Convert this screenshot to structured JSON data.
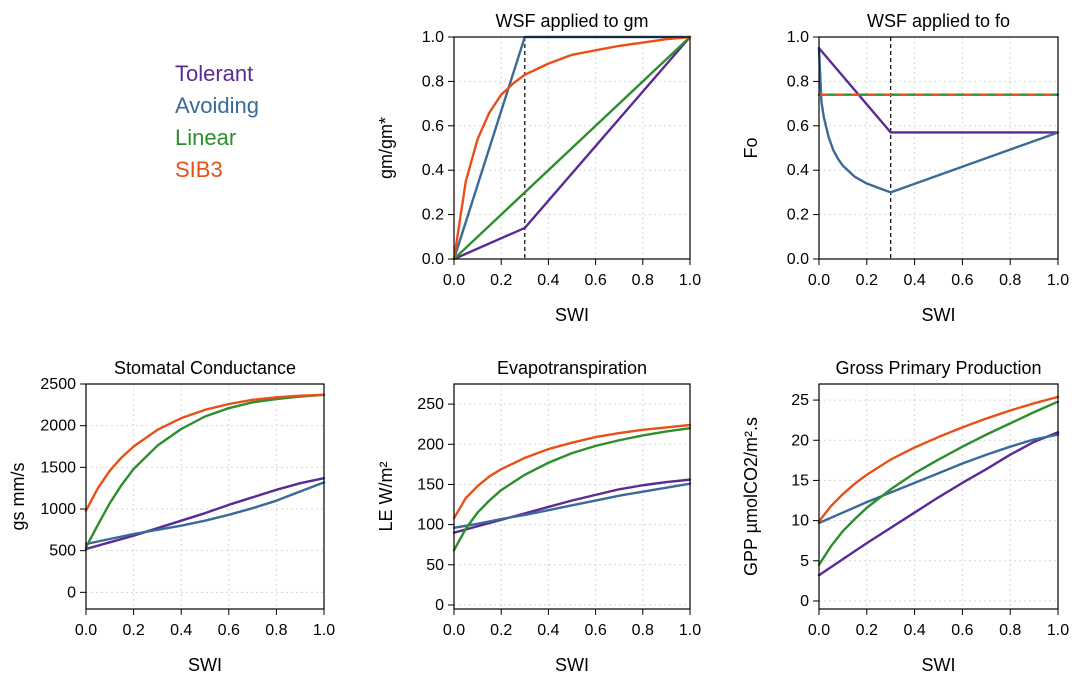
{
  "colors": {
    "tolerant": "#5b2a96",
    "avoiding": "#3a6a98",
    "linear": "#2d8e2d",
    "sib3": "#e8501a",
    "grid": "#d6d6d6"
  },
  "legend": {
    "entries": [
      {
        "label": "Tolerant",
        "color": "#5b2a96"
      },
      {
        "label": "Avoiding",
        "color": "#3a6a98"
      },
      {
        "label": "Linear",
        "color": "#2d8e2d"
      },
      {
        "label": "SIB3",
        "color": "#e8501a"
      }
    ]
  },
  "chart_data": [
    {
      "type": "line",
      "title": "WSF applied to gm",
      "xlabel": "SWI",
      "ylabel": "gm/gm*",
      "xlim": [
        0,
        1
      ],
      "ylim": [
        0,
        1
      ],
      "xticks": [
        "0.0",
        "0.2",
        "0.4",
        "0.6",
        "0.8",
        "1.0"
      ],
      "yticks": [
        "0.0",
        "0.2",
        "0.4",
        "0.6",
        "0.8",
        "1.0"
      ],
      "grid": true,
      "vline_x": 0.3,
      "series": [
        {
          "name": "Tolerant",
          "x": [
            0,
            0.3,
            1.0
          ],
          "y": [
            0,
            0.14,
            1.0
          ]
        },
        {
          "name": "Avoiding",
          "x": [
            0,
            0.3,
            1.0
          ],
          "y": [
            0,
            1.0,
            1.0
          ]
        },
        {
          "name": "Linear",
          "x": [
            0,
            1.0
          ],
          "y": [
            0,
            1.0
          ]
        },
        {
          "name": "SIB3",
          "x": [
            0,
            0.05,
            0.1,
            0.15,
            0.2,
            0.25,
            0.3,
            0.4,
            0.5,
            0.6,
            0.7,
            0.8,
            0.9,
            1.0
          ],
          "y": [
            0,
            0.35,
            0.54,
            0.66,
            0.74,
            0.79,
            0.83,
            0.88,
            0.92,
            0.94,
            0.96,
            0.975,
            0.99,
            1.0
          ]
        }
      ]
    },
    {
      "type": "line",
      "title": "WSF applied to fo",
      "xlabel": "SWI",
      "ylabel": "Fo",
      "xlim": [
        0,
        1
      ],
      "ylim": [
        0,
        1
      ],
      "xticks": [
        "0.0",
        "0.2",
        "0.4",
        "0.6",
        "0.8",
        "1.0"
      ],
      "yticks": [
        "0.0",
        "0.2",
        "0.4",
        "0.6",
        "0.8",
        "1.0"
      ],
      "grid": true,
      "vline_x": 0.3,
      "series": [
        {
          "name": "Tolerant",
          "x": [
            0,
            0.3,
            1.0
          ],
          "y": [
            0.95,
            0.57,
            0.57
          ]
        },
        {
          "name": "Avoiding",
          "x": [
            0,
            0.01,
            0.02,
            0.04,
            0.06,
            0.08,
            0.1,
            0.15,
            0.2,
            0.25,
            0.3,
            1.0
          ],
          "y": [
            0.95,
            0.71,
            0.64,
            0.55,
            0.49,
            0.45,
            0.42,
            0.37,
            0.34,
            0.32,
            0.3,
            0.57
          ]
        },
        {
          "name": "Linear",
          "x": [
            0,
            1.0
          ],
          "y": [
            0.74,
            0.74
          ]
        },
        {
          "name": "SIB3",
          "x": [
            0,
            1.0
          ],
          "y": [
            0.74,
            0.74
          ],
          "dashed": true
        }
      ]
    },
    {
      "type": "line",
      "title": "Stomatal Conductance",
      "xlabel": "SWI",
      "ylabel": "gs mm/s",
      "xlim": [
        0,
        1
      ],
      "ylim": [
        -200,
        2500
      ],
      "yticks_values": [
        0,
        500,
        1000,
        1500,
        2000,
        2500
      ],
      "xticks": [
        "0.0",
        "0.2",
        "0.4",
        "0.6",
        "0.8",
        "1.0"
      ],
      "yticks": [
        "0",
        "500",
        "1000",
        "1500",
        "2000",
        "2500"
      ],
      "grid": true,
      "series": [
        {
          "name": "Tolerant",
          "x": [
            0,
            0.1,
            0.2,
            0.3,
            0.4,
            0.5,
            0.6,
            0.7,
            0.8,
            0.9,
            1.0
          ],
          "y": [
            520,
            600,
            680,
            770,
            860,
            950,
            1050,
            1140,
            1230,
            1310,
            1370
          ]
        },
        {
          "name": "Avoiding",
          "x": [
            0,
            0.1,
            0.2,
            0.3,
            0.4,
            0.5,
            0.6,
            0.7,
            0.8,
            0.9,
            1.0
          ],
          "y": [
            580,
            640,
            700,
            750,
            800,
            860,
            930,
            1010,
            1100,
            1210,
            1320
          ]
        },
        {
          "name": "Linear",
          "x": [
            0,
            0.05,
            0.1,
            0.15,
            0.2,
            0.3,
            0.4,
            0.5,
            0.6,
            0.7,
            0.8,
            0.9,
            1.0
          ],
          "y": [
            540,
            810,
            1070,
            1290,
            1480,
            1760,
            1960,
            2110,
            2210,
            2280,
            2320,
            2350,
            2370
          ]
        },
        {
          "name": "SIB3",
          "x": [
            0,
            0.05,
            0.1,
            0.15,
            0.2,
            0.3,
            0.4,
            0.5,
            0.6,
            0.7,
            0.8,
            0.9,
            1.0
          ],
          "y": [
            980,
            1250,
            1460,
            1620,
            1750,
            1950,
            2090,
            2190,
            2260,
            2310,
            2340,
            2360,
            2370
          ]
        }
      ]
    },
    {
      "type": "line",
      "title": "Evapotranspiration",
      "xlabel": "SWI",
      "ylabel": "LE W/m²",
      "xlim": [
        0,
        1
      ],
      "ylim": [
        -5,
        275
      ],
      "yticks_values": [
        0,
        50,
        100,
        150,
        200,
        250
      ],
      "xticks": [
        "0.0",
        "0.2",
        "0.4",
        "0.6",
        "0.8",
        "1.0"
      ],
      "yticks": [
        "0",
        "50",
        "100",
        "150",
        "200",
        "250"
      ],
      "grid": true,
      "series": [
        {
          "name": "Tolerant",
          "x": [
            0,
            0.1,
            0.2,
            0.3,
            0.4,
            0.5,
            0.6,
            0.7,
            0.8,
            0.9,
            1.0
          ],
          "y": [
            90,
            98,
            106,
            114,
            122,
            130,
            137,
            144,
            149,
            153,
            156
          ]
        },
        {
          "name": "Avoiding",
          "x": [
            0,
            0.1,
            0.2,
            0.3,
            0.4,
            0.5,
            0.6,
            0.7,
            0.8,
            0.9,
            1.0
          ],
          "y": [
            96,
            101,
            107,
            112,
            118,
            124,
            130,
            136,
            141,
            146,
            151
          ]
        },
        {
          "name": "Linear",
          "x": [
            0,
            0.05,
            0.1,
            0.15,
            0.2,
            0.3,
            0.4,
            0.5,
            0.6,
            0.7,
            0.8,
            0.9,
            1.0
          ],
          "y": [
            68,
            95,
            115,
            130,
            143,
            162,
            177,
            189,
            198,
            205,
            211,
            216,
            220
          ]
        },
        {
          "name": "SIB3",
          "x": [
            0,
            0.05,
            0.1,
            0.15,
            0.2,
            0.3,
            0.4,
            0.5,
            0.6,
            0.7,
            0.8,
            0.9,
            1.0
          ],
          "y": [
            108,
            133,
            148,
            160,
            169,
            183,
            194,
            202,
            209,
            214,
            218,
            221,
            224
          ]
        }
      ]
    },
    {
      "type": "line",
      "title": "Gross Primary Production",
      "xlabel": "SWI",
      "ylabel": "GPP µmolCO2/m².s",
      "xlim": [
        0,
        1
      ],
      "ylim": [
        -1,
        27
      ],
      "yticks_values": [
        0,
        5,
        10,
        15,
        20,
        25
      ],
      "xticks": [
        "0.0",
        "0.2",
        "0.4",
        "0.6",
        "0.8",
        "1.0"
      ],
      "yticks": [
        "0",
        "5",
        "10",
        "15",
        "20",
        "25"
      ],
      "grid": true,
      "series": [
        {
          "name": "Tolerant",
          "x": [
            0,
            0.1,
            0.2,
            0.3,
            0.4,
            0.5,
            0.6,
            0.7,
            0.8,
            0.9,
            1.0
          ],
          "y": [
            3.2,
            5.2,
            7.2,
            9.1,
            11.0,
            12.9,
            14.7,
            16.4,
            18.2,
            19.8,
            21.0
          ]
        },
        {
          "name": "Avoiding",
          "x": [
            0,
            0.1,
            0.2,
            0.3,
            0.4,
            0.5,
            0.6,
            0.7,
            0.8,
            0.9,
            1.0
          ],
          "y": [
            9.7,
            11.0,
            12.3,
            13.5,
            14.7,
            15.9,
            17.1,
            18.2,
            19.2,
            20.1,
            20.7
          ]
        },
        {
          "name": "Linear",
          "x": [
            0,
            0.05,
            0.1,
            0.15,
            0.2,
            0.3,
            0.4,
            0.5,
            0.6,
            0.7,
            0.8,
            0.9,
            1.0
          ],
          "y": [
            4.5,
            6.8,
            8.7,
            10.2,
            11.6,
            13.9,
            15.9,
            17.6,
            19.2,
            20.7,
            22.1,
            23.5,
            24.8
          ]
        },
        {
          "name": "SIB3",
          "x": [
            0,
            0.05,
            0.1,
            0.15,
            0.2,
            0.3,
            0.4,
            0.5,
            0.6,
            0.7,
            0.8,
            0.9,
            1.0
          ],
          "y": [
            9.9,
            11.8,
            13.3,
            14.6,
            15.7,
            17.6,
            19.1,
            20.4,
            21.6,
            22.7,
            23.7,
            24.6,
            25.4
          ]
        }
      ]
    }
  ]
}
